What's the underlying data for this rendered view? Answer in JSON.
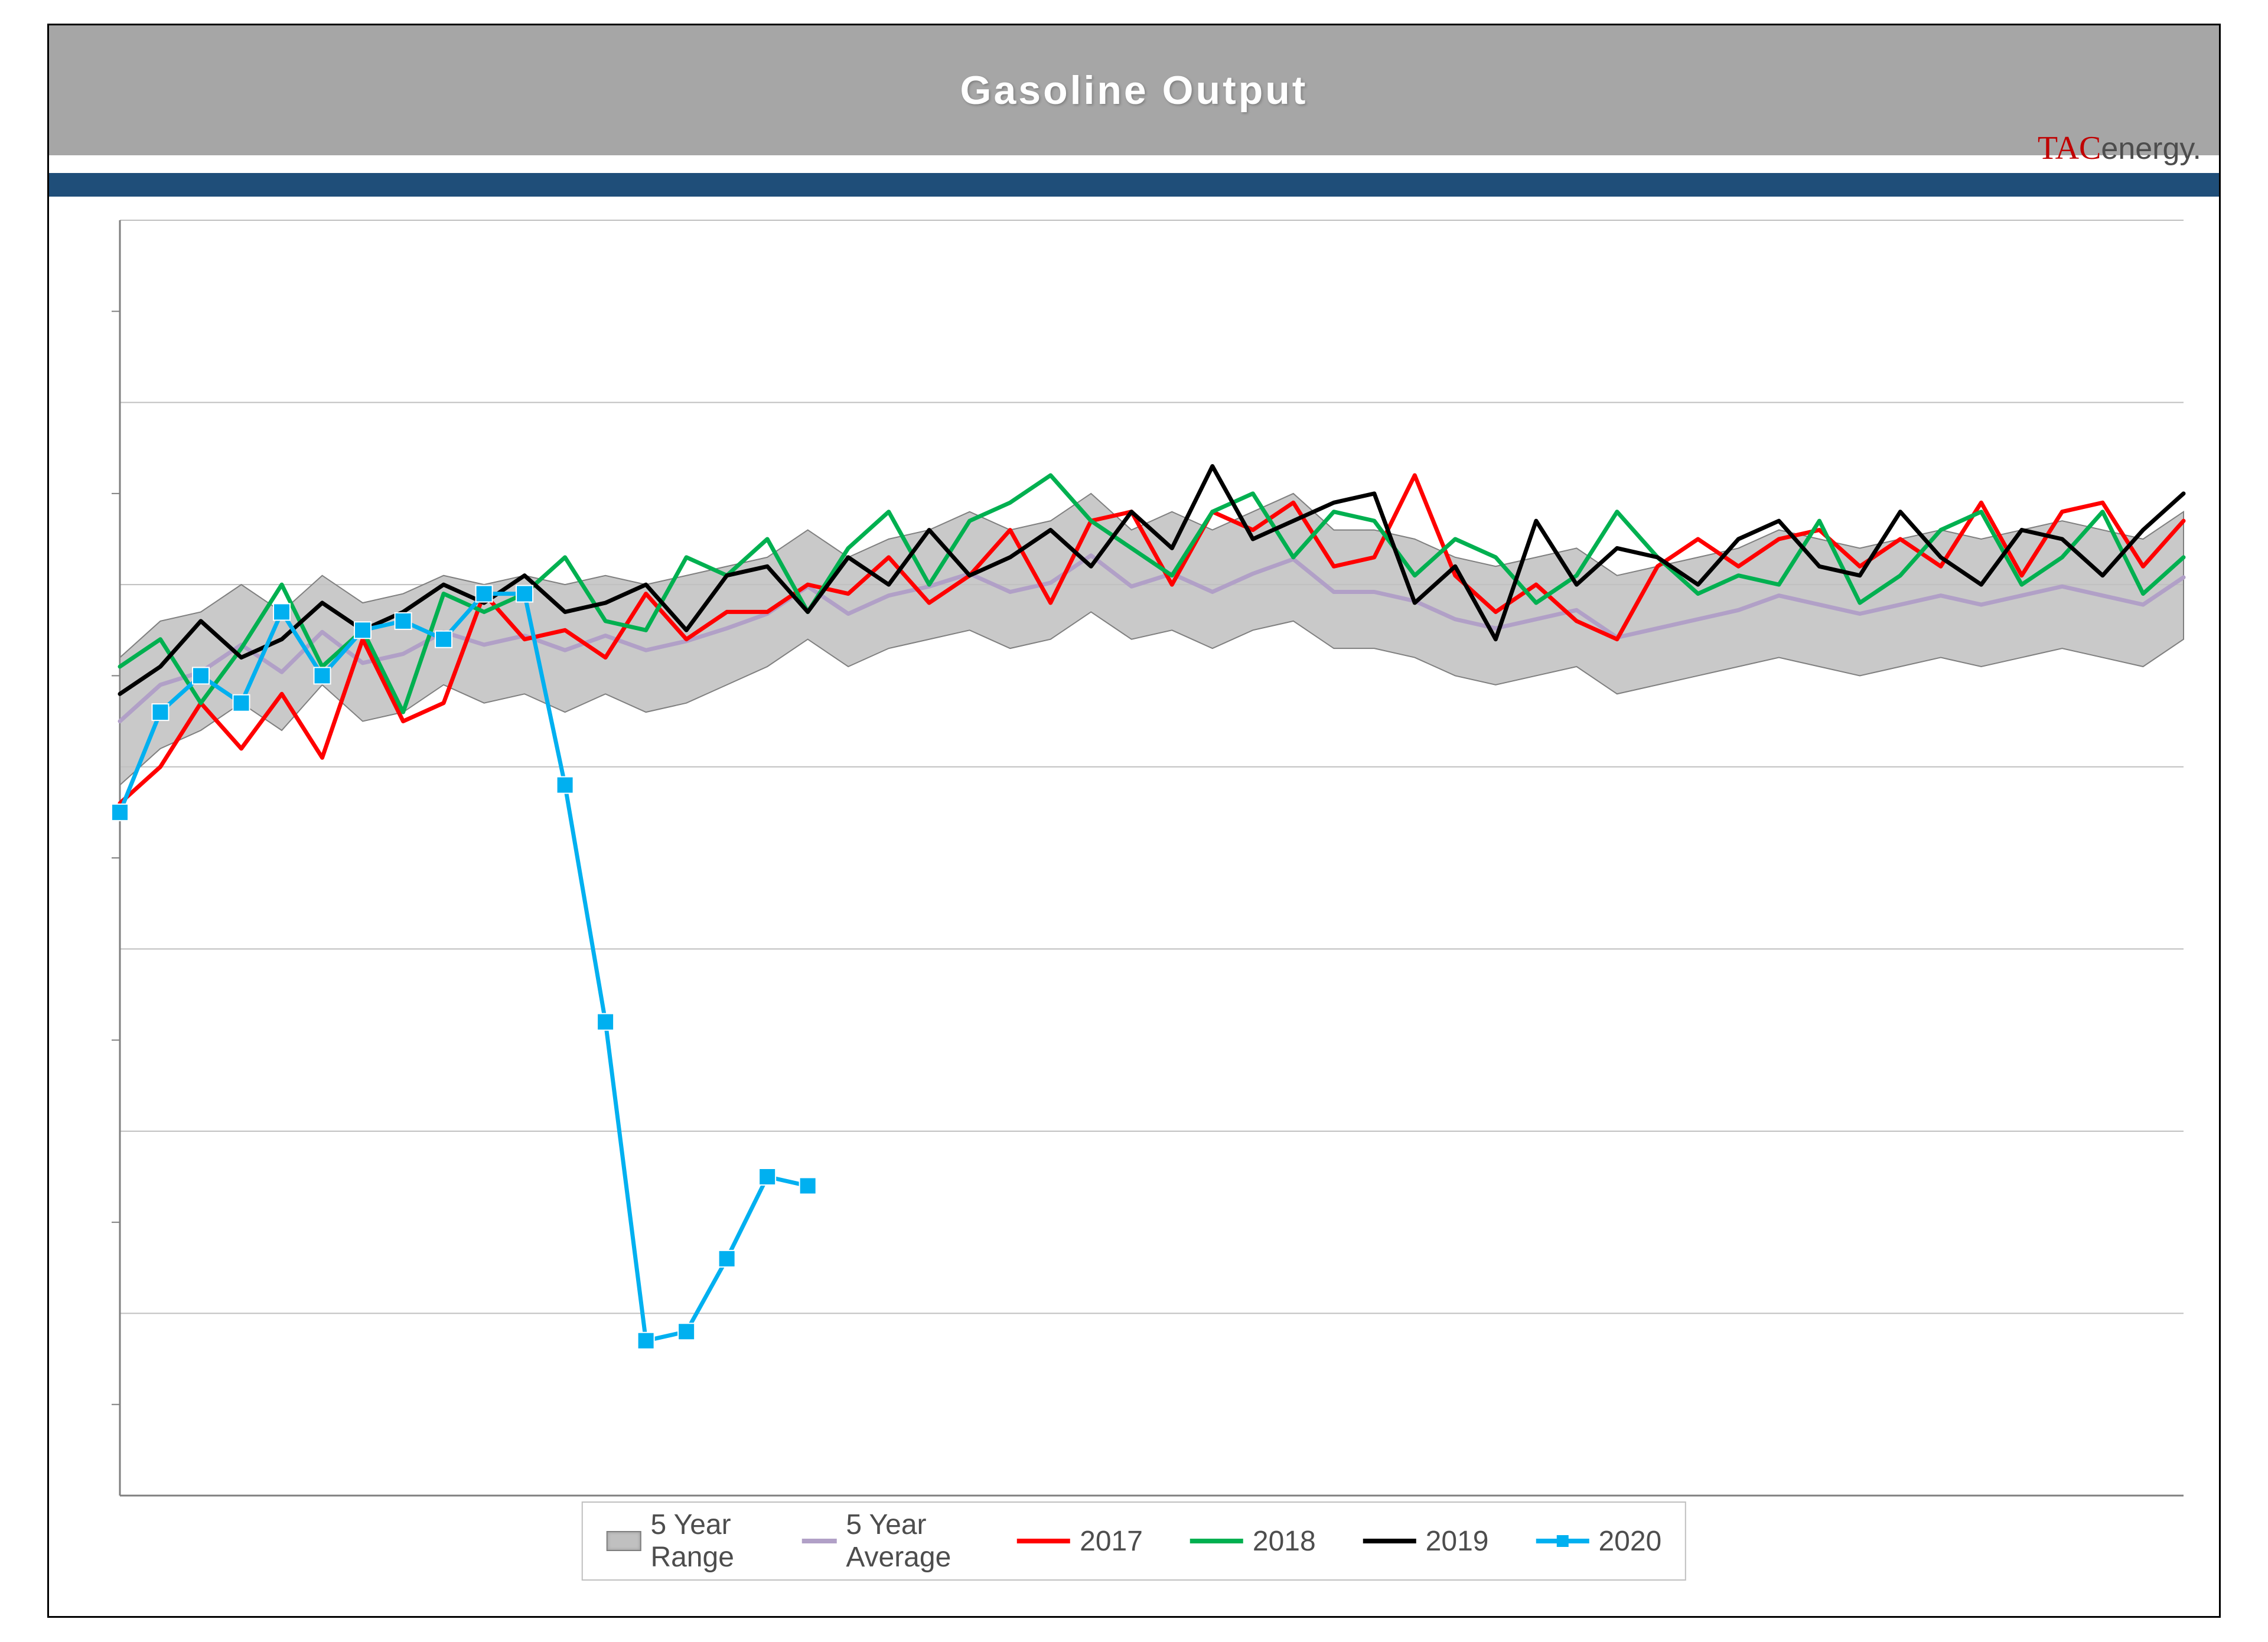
{
  "title": "Gasoline Output",
  "brand_prefix": "TAC",
  "brand_suffix": "energy.",
  "chart": {
    "type": "line",
    "background_color": "#ffffff",
    "plot_border_color": "#000000",
    "gridline_color": "#d9d9d9",
    "ylim": [
      5000,
      12000
    ],
    "ymajor_gridlines": [
      6000,
      7000,
      8000,
      9000,
      10000,
      11000,
      12000
    ],
    "ytick_minor": [
      5500,
      6500,
      7500,
      8500,
      9500,
      10500,
      11500
    ],
    "x_count": 52,
    "line_width": 7,
    "title_fontsize": 68,
    "legend_fontsize": 48,
    "legend_border_color": "#bfbfbf",
    "series": {
      "range": {
        "label": "5 Year Range",
        "fill": "#c0c0c0",
        "stroke": "#7f7f7f",
        "high": [
          9600,
          9800,
          9850,
          10000,
          9850,
          10050,
          9900,
          9950,
          10050,
          10000,
          10050,
          10000,
          10050,
          10000,
          10050,
          10100,
          10150,
          10300,
          10150,
          10250,
          10300,
          10400,
          10300,
          10350,
          10500,
          10300,
          10400,
          10300,
          10400,
          10500,
          10300,
          10300,
          10250,
          10150,
          10100,
          10150,
          10200,
          10050,
          10100,
          10150,
          10200,
          10300,
          10250,
          10200,
          10250,
          10300,
          10250,
          10300,
          10350,
          10300,
          10250,
          10400
        ],
        "low": [
          8900,
          9100,
          9200,
          9350,
          9200,
          9450,
          9250,
          9300,
          9450,
          9350,
          9400,
          9300,
          9400,
          9300,
          9350,
          9450,
          9550,
          9700,
          9550,
          9650,
          9700,
          9750,
          9650,
          9700,
          9850,
          9700,
          9750,
          9650,
          9750,
          9800,
          9650,
          9650,
          9600,
          9500,
          9450,
          9500,
          9550,
          9400,
          9450,
          9500,
          9550,
          9600,
          9550,
          9500,
          9550,
          9600,
          9550,
          9600,
          9650,
          9600,
          9550,
          9700
        ]
      },
      "avg": {
        "label": "5 Year Average",
        "color": "#b1a0c7",
        "values": [
          9250,
          9450,
          9520,
          9670,
          9520,
          9740,
          9570,
          9620,
          9740,
          9670,
          9720,
          9640,
          9720,
          9640,
          9690,
          9760,
          9840,
          9990,
          9840,
          9940,
          9990,
          10060,
          9960,
          10010,
          10160,
          9990,
          10060,
          9960,
          10060,
          10140,
          9960,
          9960,
          9910,
          9810,
          9760,
          9810,
          9860,
          9710,
          9760,
          9810,
          9860,
          9940,
          9890,
          9840,
          9890,
          9940,
          9890,
          9940,
          9990,
          9940,
          9890,
          10040
        ]
      },
      "y2017": {
        "label": "2017",
        "color": "#ff0000",
        "values": [
          8800,
          9000,
          9350,
          9100,
          9400,
          9050,
          9700,
          9250,
          9350,
          9950,
          9700,
          9750,
          9600,
          9950,
          9700,
          9850,
          9850,
          10000,
          9950,
          10150,
          9900,
          10050,
          10300,
          9900,
          10350,
          10400,
          10000,
          10400,
          10300,
          10450,
          10100,
          10150,
          10600,
          10050,
          9850,
          10000,
          9800,
          9700,
          10100,
          10250,
          10100,
          10250,
          10300,
          10100,
          10250,
          10100,
          10450,
          10050,
          10400,
          10450,
          10100,
          10350
        ]
      },
      "y2018": {
        "label": "2018",
        "color": "#00b050",
        "values": [
          9550,
          9700,
          9350,
          9650,
          10000,
          9550,
          9750,
          9300,
          9950,
          9850,
          9950,
          10150,
          9800,
          9750,
          10150,
          10050,
          10250,
          9850,
          10200,
          10400,
          10000,
          10350,
          10450,
          10600,
          10350,
          10200,
          10050,
          10400,
          10500,
          10150,
          10400,
          10350,
          10050,
          10250,
          10150,
          9900,
          10050,
          10400,
          10150,
          9950,
          10050,
          10000,
          10350,
          9900,
          10050,
          10300,
          10400,
          10000,
          10150,
          10400,
          9950,
          10150
        ]
      },
      "y2019": {
        "label": "2019",
        "color": "#000000",
        "values": [
          9400,
          9550,
          9800,
          9600,
          9700,
          9900,
          9750,
          9850,
          10000,
          9900,
          10050,
          9850,
          9900,
          10000,
          9750,
          10050,
          10100,
          9850,
          10150,
          10000,
          10300,
          10050,
          10150,
          10300,
          10100,
          10400,
          10200,
          10650,
          10250,
          10350,
          10450,
          10500,
          9900,
          10100,
          9700,
          10350,
          10000,
          10200,
          10150,
          10000,
          10250,
          10350,
          10100,
          10050,
          10400,
          10150,
          10000,
          10300,
          10250,
          10050,
          10300,
          10500
        ]
      },
      "y2020": {
        "label": "2020",
        "color": "#00b0f0",
        "marker": "square",
        "marker_size": 28,
        "values": [
          8750,
          9300,
          9500,
          9350,
          9850,
          9500,
          9750,
          9800,
          9700,
          9950,
          9950,
          8900,
          7600,
          5850,
          5900,
          6300,
          6750,
          6700
        ]
      }
    },
    "legend_order": [
      "range",
      "avg",
      "y2017",
      "y2018",
      "y2019",
      "y2020"
    ]
  }
}
